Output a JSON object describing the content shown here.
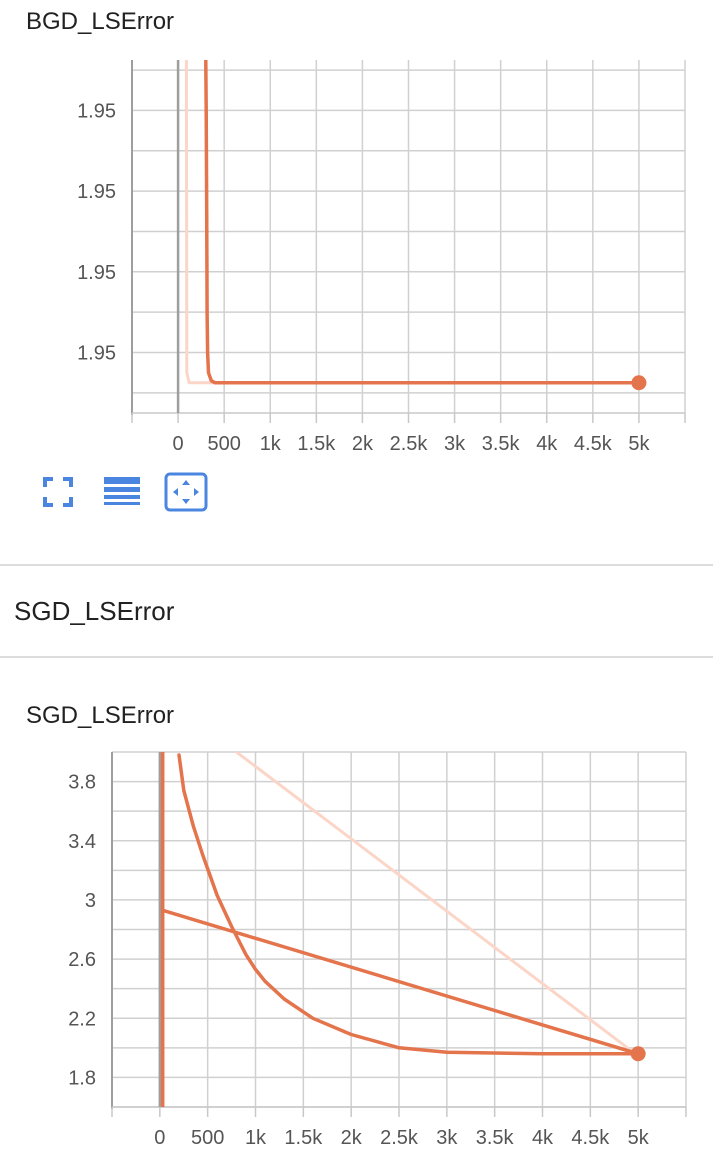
{
  "cards": [
    {
      "title": "BGD_LSError",
      "chart_data": {
        "type": "line",
        "title": "BGD_LSError",
        "xlabel": "",
        "ylabel": "",
        "xlim": [
          -500,
          5500
        ],
        "ylim": [
          1.9495,
          1.95125
        ],
        "x_ticks": [
          0,
          500,
          1000,
          1500,
          2000,
          2500,
          3000,
          3500,
          4000,
          4500,
          5000
        ],
        "x_tick_labels": [
          "0",
          "500",
          "1k",
          "1.5k",
          "2k",
          "2.5k",
          "3k",
          "3.5k",
          "4k",
          "4.5k",
          "5k"
        ],
        "y_ticks": [
          1.9498,
          1.9502,
          1.9506,
          1.951
        ],
        "y_tick_labels": [
          "1.95",
          "1.95",
          "1.95",
          "1.95"
        ],
        "grid": true,
        "series": [
          {
            "role": "raw",
            "color": "#fbd6c8",
            "x": [
              90,
              95,
              120,
              400,
              5000
            ],
            "y": [
              1.9513,
              1.9497,
              1.94965,
              1.94965,
              1.94965
            ]
          },
          {
            "role": "smoothed",
            "color": "#e4744c",
            "x": [
              300,
              305,
              310,
              315,
              320,
              330,
              345,
              360,
              400,
              600,
              5000
            ],
            "y": [
              1.9513,
              1.951,
              1.9505,
              1.95,
              1.9498,
              1.9497,
              1.94968,
              1.94966,
              1.94965,
              1.94965,
              1.94965
            ]
          }
        ]
      },
      "toolbar": {
        "fullscreen_icon": "fullscreen-icon",
        "data_table_icon": "data-table-icon",
        "fit_domain_icon": "fit-domain-icon"
      }
    },
    {
      "section_title": "SGD_LSError",
      "title": "SGD_LSError",
      "chart_data": {
        "type": "line",
        "title": "SGD_LSError",
        "xlabel": "",
        "ylabel": "",
        "xlim": [
          -500,
          5500
        ],
        "ylim": [
          1.6,
          4.0
        ],
        "x_ticks": [
          0,
          500,
          1000,
          1500,
          2000,
          2500,
          3000,
          3500,
          4000,
          4500,
          5000
        ],
        "x_tick_labels": [
          "0",
          "500",
          "1k",
          "1.5k",
          "2k",
          "2.5k",
          "3k",
          "3.5k",
          "4k",
          "4.5k",
          "5k"
        ],
        "y_ticks": [
          1.8,
          2.2,
          2.6,
          3.0,
          3.4,
          3.8
        ],
        "y_tick_labels": [
          "1.8",
          "2.2",
          "2.6",
          "3",
          "3.4",
          "3.8"
        ],
        "grid": true,
        "series": [
          {
            "role": "raw",
            "color": "#fbd6c8",
            "x": [
              800,
              4950
            ],
            "y": [
              4.0,
              1.97
            ]
          },
          {
            "role": "smoothed",
            "color": "#e4744c",
            "x": [
              30,
              30,
              30,
              5000,
              4800,
              4000,
              3000,
              2500,
              2000,
              1600,
              1300,
              1100,
              1000,
              900,
              750,
              600,
              450,
              350,
              250,
              200
            ],
            "y": [
              1.6,
              4.0,
              2.93,
              1.96,
              1.96,
              1.96,
              1.97,
              2.0,
              2.09,
              2.2,
              2.33,
              2.45,
              2.53,
              2.63,
              2.82,
              3.03,
              3.3,
              3.5,
              3.74,
              3.98
            ]
          }
        ]
      }
    }
  ]
}
